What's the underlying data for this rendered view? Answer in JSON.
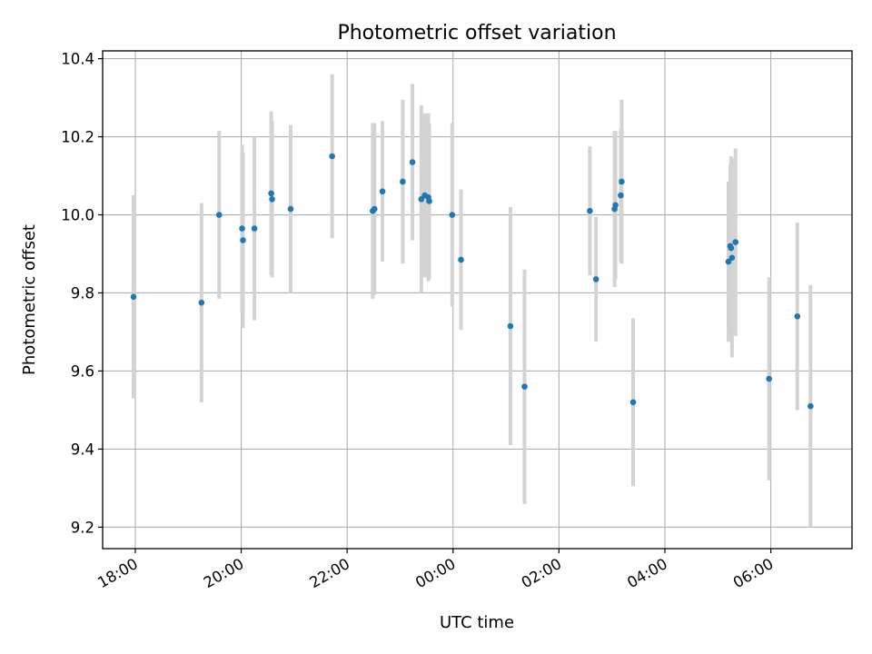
{
  "chart_data": {
    "type": "scatter",
    "title": "Photometric offset variation",
    "xlabel": "UTC time",
    "ylabel": "Photometric offset",
    "x_ticks": [
      "18:00",
      "20:00",
      "22:00",
      "00:00",
      "02:00",
      "04:00",
      "06:00"
    ],
    "y_ticks": [
      "9.2",
      "9.4",
      "9.6",
      "9.8",
      "10.0",
      "10.2",
      "10.4"
    ],
    "xlim": [
      "17:23",
      "07:32"
    ],
    "ylim": [
      9.145,
      10.42
    ],
    "grid": true,
    "colors": {
      "point": "#1f77b4",
      "errorbar": "#d3d3d3",
      "grid": "#b0b0b0"
    },
    "series": [
      {
        "points": [
          {
            "time": "17:58",
            "y": 9.79,
            "err": 0.26
          },
          {
            "time": "19:15",
            "y": 9.775,
            "err": 0.255
          },
          {
            "time": "19:35",
            "y": 10.0,
            "err": 0.215
          },
          {
            "time": "20:01",
            "y": 9.965,
            "err": 0.215
          },
          {
            "time": "20:02",
            "y": 9.935,
            "err": 0.225
          },
          {
            "time": "20:15",
            "y": 9.965,
            "err": 0.235
          },
          {
            "time": "20:34",
            "y": 10.055,
            "err": 0.21
          },
          {
            "time": "20:35",
            "y": 10.04,
            "err": 0.2
          },
          {
            "time": "20:56",
            "y": 10.015,
            "err": 0.215
          },
          {
            "time": "21:43",
            "y": 10.15,
            "err": 0.21
          },
          {
            "time": "22:29",
            "y": 10.01,
            "err": 0.225
          },
          {
            "time": "22:31",
            "y": 10.015,
            "err": 0.22
          },
          {
            "time": "22:40",
            "y": 10.06,
            "err": 0.18
          },
          {
            "time": "23:03",
            "y": 10.085,
            "err": 0.21
          },
          {
            "time": "23:14",
            "y": 10.135,
            "err": 0.2
          },
          {
            "time": "23:24",
            "y": 10.04,
            "err": 0.24
          },
          {
            "time": "23:28",
            "y": 10.05,
            "err": 0.21
          },
          {
            "time": "23:32",
            "y": 10.045,
            "err": 0.215
          },
          {
            "time": "23:33",
            "y": 10.035,
            "err": 0.2
          },
          {
            "time": "23:59",
            "y": 10.0,
            "err": 0.235
          },
          {
            "time": "00:09",
            "y": 9.885,
            "err": 0.18
          },
          {
            "time": "01:05",
            "y": 9.715,
            "err": 0.305
          },
          {
            "time": "01:21",
            "y": 9.56,
            "err": 0.3
          },
          {
            "time": "02:35",
            "y": 10.01,
            "err": 0.165
          },
          {
            "time": "02:42",
            "y": 9.835,
            "err": 0.16
          },
          {
            "time": "03:03",
            "y": 10.015,
            "err": 0.2
          },
          {
            "time": "03:04",
            "y": 10.025,
            "err": 0.19
          },
          {
            "time": "03:10",
            "y": 10.05,
            "err": 0.17
          },
          {
            "time": "03:11",
            "y": 10.085,
            "err": 0.21
          },
          {
            "time": "03:24",
            "y": 9.52,
            "err": 0.215
          },
          {
            "time": "05:12",
            "y": 9.88,
            "err": 0.205
          },
          {
            "time": "05:14",
            "y": 9.92,
            "err": 0.21
          },
          {
            "time": "05:15",
            "y": 9.915,
            "err": 0.235
          },
          {
            "time": "05:16",
            "y": 9.89,
            "err": 0.255
          },
          {
            "time": "05:20",
            "y": 9.93,
            "err": 0.24
          },
          {
            "time": "05:58",
            "y": 9.58,
            "err": 0.26
          },
          {
            "time": "06:30",
            "y": 9.74,
            "err": 0.24
          },
          {
            "time": "06:45",
            "y": 9.51,
            "err": 0.31
          }
        ]
      }
    ]
  }
}
